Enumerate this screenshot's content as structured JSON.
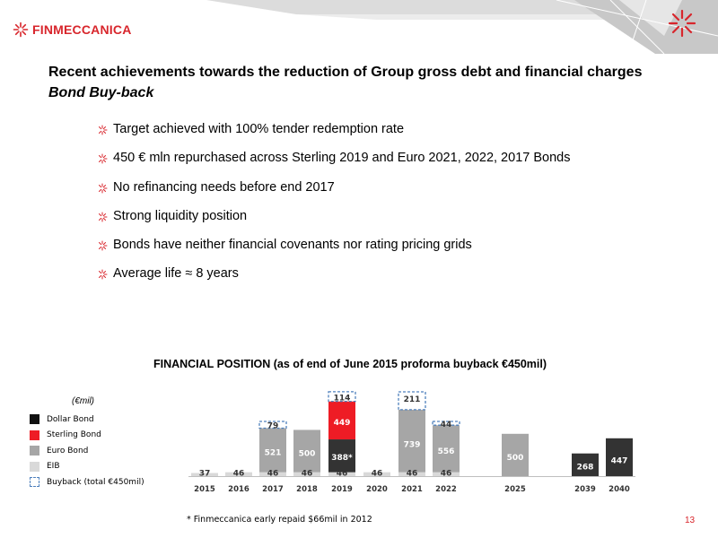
{
  "header": {
    "logo_text": "FINMECCANICA",
    "accent_color": "#d8262c",
    "logo_icon": "starburst-icon"
  },
  "slide": {
    "title": "Recent achievements towards the reduction of Group gross debt and financial charges",
    "subtitle": "Bond Buy-back",
    "bullets": [
      "Target achieved with 100% tender redemption rate",
      "450 € mln repurchased across Sterling 2019 and Euro 2021, 2022, 2017 Bonds",
      "No refinancing needs before end 2017",
      "Strong liquidity position",
      "Bonds have neither financial covenants nor rating pricing grids",
      "Average life ≈ 8 years"
    ],
    "footnote": "* Finmeccanica early repaid $66mil in 2012",
    "page_number": "13"
  },
  "chart_data": {
    "type": "bar",
    "stacked": true,
    "title": "FINANCIAL POSITION (as of end of June 2015 proforma buyback €450mil)",
    "unit_label": "(€mil)",
    "categories": [
      "2015",
      "2016",
      "2017",
      "2018",
      "2019",
      "2020",
      "2021",
      "2022",
      "2025",
      "2039",
      "2040"
    ],
    "series": [
      {
        "name": "Dollar Bond",
        "color": "#333333",
        "values": [
          0,
          0,
          0,
          0,
          388,
          0,
          0,
          0,
          0,
          268,
          447
        ],
        "labels": [
          "",
          "",
          "",
          "",
          "388*",
          "",
          "",
          "",
          "",
          "268",
          "447"
        ]
      },
      {
        "name": "Sterling Bond",
        "color": "#ee1c25",
        "values": [
          0,
          0,
          0,
          0,
          449,
          0,
          0,
          0,
          0,
          0,
          0
        ],
        "labels": [
          "",
          "",
          "",
          "",
          "449",
          "",
          "",
          "",
          "",
          "",
          ""
        ]
      },
      {
        "name": "Euro Bond",
        "color": "#a6a6a6",
        "values": [
          0,
          0,
          521,
          500,
          0,
          0,
          739,
          556,
          500,
          0,
          0
        ],
        "labels": [
          "",
          "",
          "521",
          "500",
          "",
          "",
          "739",
          "556",
          "500",
          "",
          ""
        ]
      },
      {
        "name": "EIB",
        "color": "#d9d9d9",
        "values": [
          37,
          46,
          46,
          46,
          46,
          46,
          46,
          46,
          0,
          0,
          0
        ],
        "labels": [
          "37",
          "46",
          "46",
          "46",
          "46",
          "46",
          "46",
          "46",
          "",
          "",
          ""
        ]
      },
      {
        "name": "Buyback (total €450mil)",
        "color": "#4f81bd",
        "values": [
          0,
          0,
          79,
          0,
          114,
          0,
          211,
          44,
          0,
          0,
          0
        ],
        "labels": [
          "",
          "",
          "79",
          "",
          "114",
          "",
          "211",
          "44",
          "",
          "",
          ""
        ]
      }
    ],
    "legend_position": "left",
    "grid": false
  }
}
